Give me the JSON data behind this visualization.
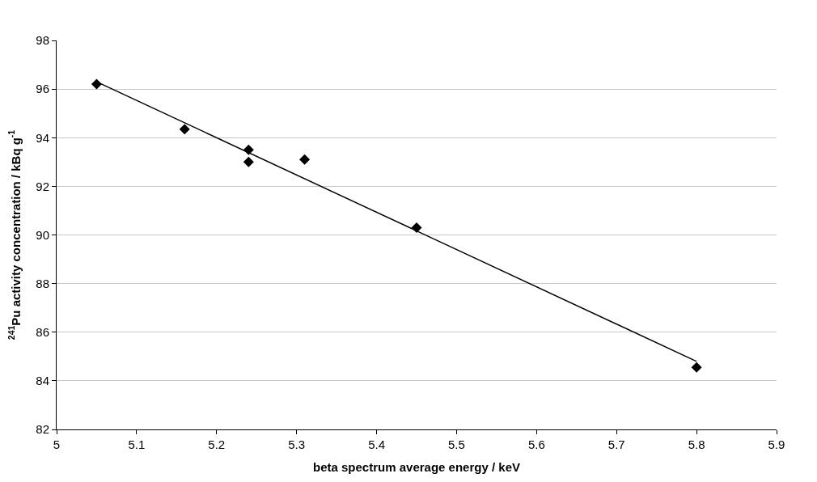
{
  "chart_data": {
    "type": "scatter",
    "xlabel": "beta spectrum average energy / keV",
    "ylabel": "$^{241}$Pu activity concentration / kBq g$^{-1}$",
    "series": [
      {
        "color": "#000000",
        "marker": "diamond",
        "x": [
          5.05,
          5.16,
          5.24,
          5.24,
          5.31,
          5.45,
          5.8
        ],
        "values": [
          96.2,
          94.35,
          93.5,
          93.0,
          93.1,
          90.3,
          84.55
        ]
      },
      {
        "type": "line",
        "color": "#000000",
        "marker": "none",
        "x": [
          5.05,
          5.8
        ],
        "values": [
          96.3,
          84.8
        ]
      }
    ],
    "xlim": [
      5,
      5.9
    ],
    "xticks": [
      5,
      5.1,
      5.2,
      5.3,
      5.4,
      5.5,
      5.6,
      5.7,
      5.8,
      5.9
    ],
    "ylim": [
      82,
      98
    ],
    "yticks": [
      82,
      84,
      86,
      88,
      90,
      92,
      94,
      96,
      98
    ],
    "grid": "y"
  }
}
